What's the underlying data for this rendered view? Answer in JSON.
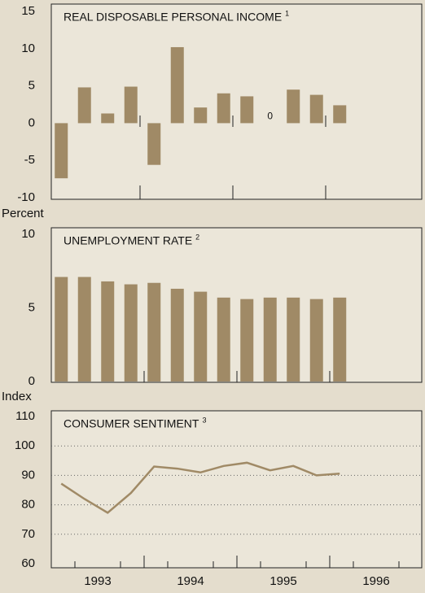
{
  "chart_data": [
    {
      "type": "bar",
      "title": "REAL DISPOSABLE PERSONAL INCOME",
      "footnote": "1",
      "categories": [
        null,
        null,
        null,
        null,
        null,
        null,
        null,
        null,
        null,
        null,
        null,
        null,
        null
      ],
      "values": [
        -7.4,
        4.8,
        1.3,
        4.9,
        -5.6,
        10.2,
        2.1,
        4.0,
        3.6,
        0,
        4.5,
        3.8,
        2.4
      ],
      "value_labels": [
        null,
        null,
        null,
        null,
        null,
        null,
        null,
        null,
        null,
        "0",
        null,
        null,
        null
      ],
      "color": "#a08a66",
      "ylim": [
        -10,
        15
      ],
      "yticks": [
        -10,
        -5,
        0,
        5,
        10,
        15
      ],
      "grid": false
    },
    {
      "type": "bar",
      "title": "UNEMPLOYMENT RATE",
      "footnote": "2",
      "y_label": "Percent",
      "categories": [
        null,
        null,
        null,
        null,
        null,
        null,
        null,
        null,
        null,
        null,
        null,
        null,
        null
      ],
      "values": [
        7.1,
        7.1,
        6.8,
        6.6,
        6.7,
        6.3,
        6.1,
        5.7,
        5.6,
        5.7,
        5.7,
        5.6,
        5.7
      ],
      "color": "#a08a66",
      "ylim": [
        0,
        10
      ],
      "yticks": [
        0,
        5,
        10
      ],
      "grid": false
    },
    {
      "type": "line",
      "title": "CONSUMER SENTIMENT",
      "footnote": "3",
      "y_label": "Index",
      "categories": [
        null,
        null,
        null,
        null,
        null,
        null,
        null,
        null,
        null,
        null,
        null,
        null,
        null
      ],
      "values": [
        87.2,
        82,
        77.3,
        84,
        93,
        92.3,
        91,
        93.2,
        94.3,
        91.7,
        93.2,
        90,
        90.6
      ],
      "x_labels": [
        "1993",
        "1994",
        "1995",
        "1996"
      ],
      "color": "#a08a66",
      "ylim": [
        60,
        110
      ],
      "yticks": [
        60,
        70,
        80,
        90,
        100,
        110
      ],
      "grid": true
    }
  ]
}
